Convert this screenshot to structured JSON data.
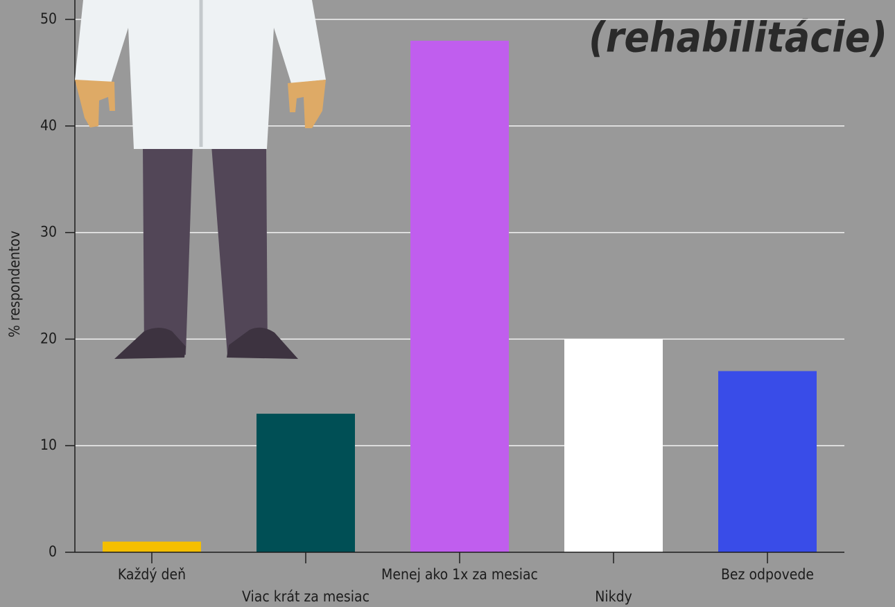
{
  "chart_data": {
    "type": "bar",
    "title": "(rehabilitácie)",
    "y_label": "% respondentov",
    "categories": [
      "Každý deň",
      "Viac krát za mesiac",
      "Menej ako 1x za mesiac",
      "Nikdy",
      "Bez odpovede"
    ],
    "values": [
      1,
      13,
      48,
      20,
      17
    ],
    "colors": [
      "#f5bf00",
      "#004f55",
      "#c05eee",
      "#ffffff",
      "#394ce8"
    ],
    "ylim": [
      0,
      50
    ],
    "yticks": [
      0,
      10,
      20,
      30,
      40,
      50
    ],
    "grid": true
  }
}
